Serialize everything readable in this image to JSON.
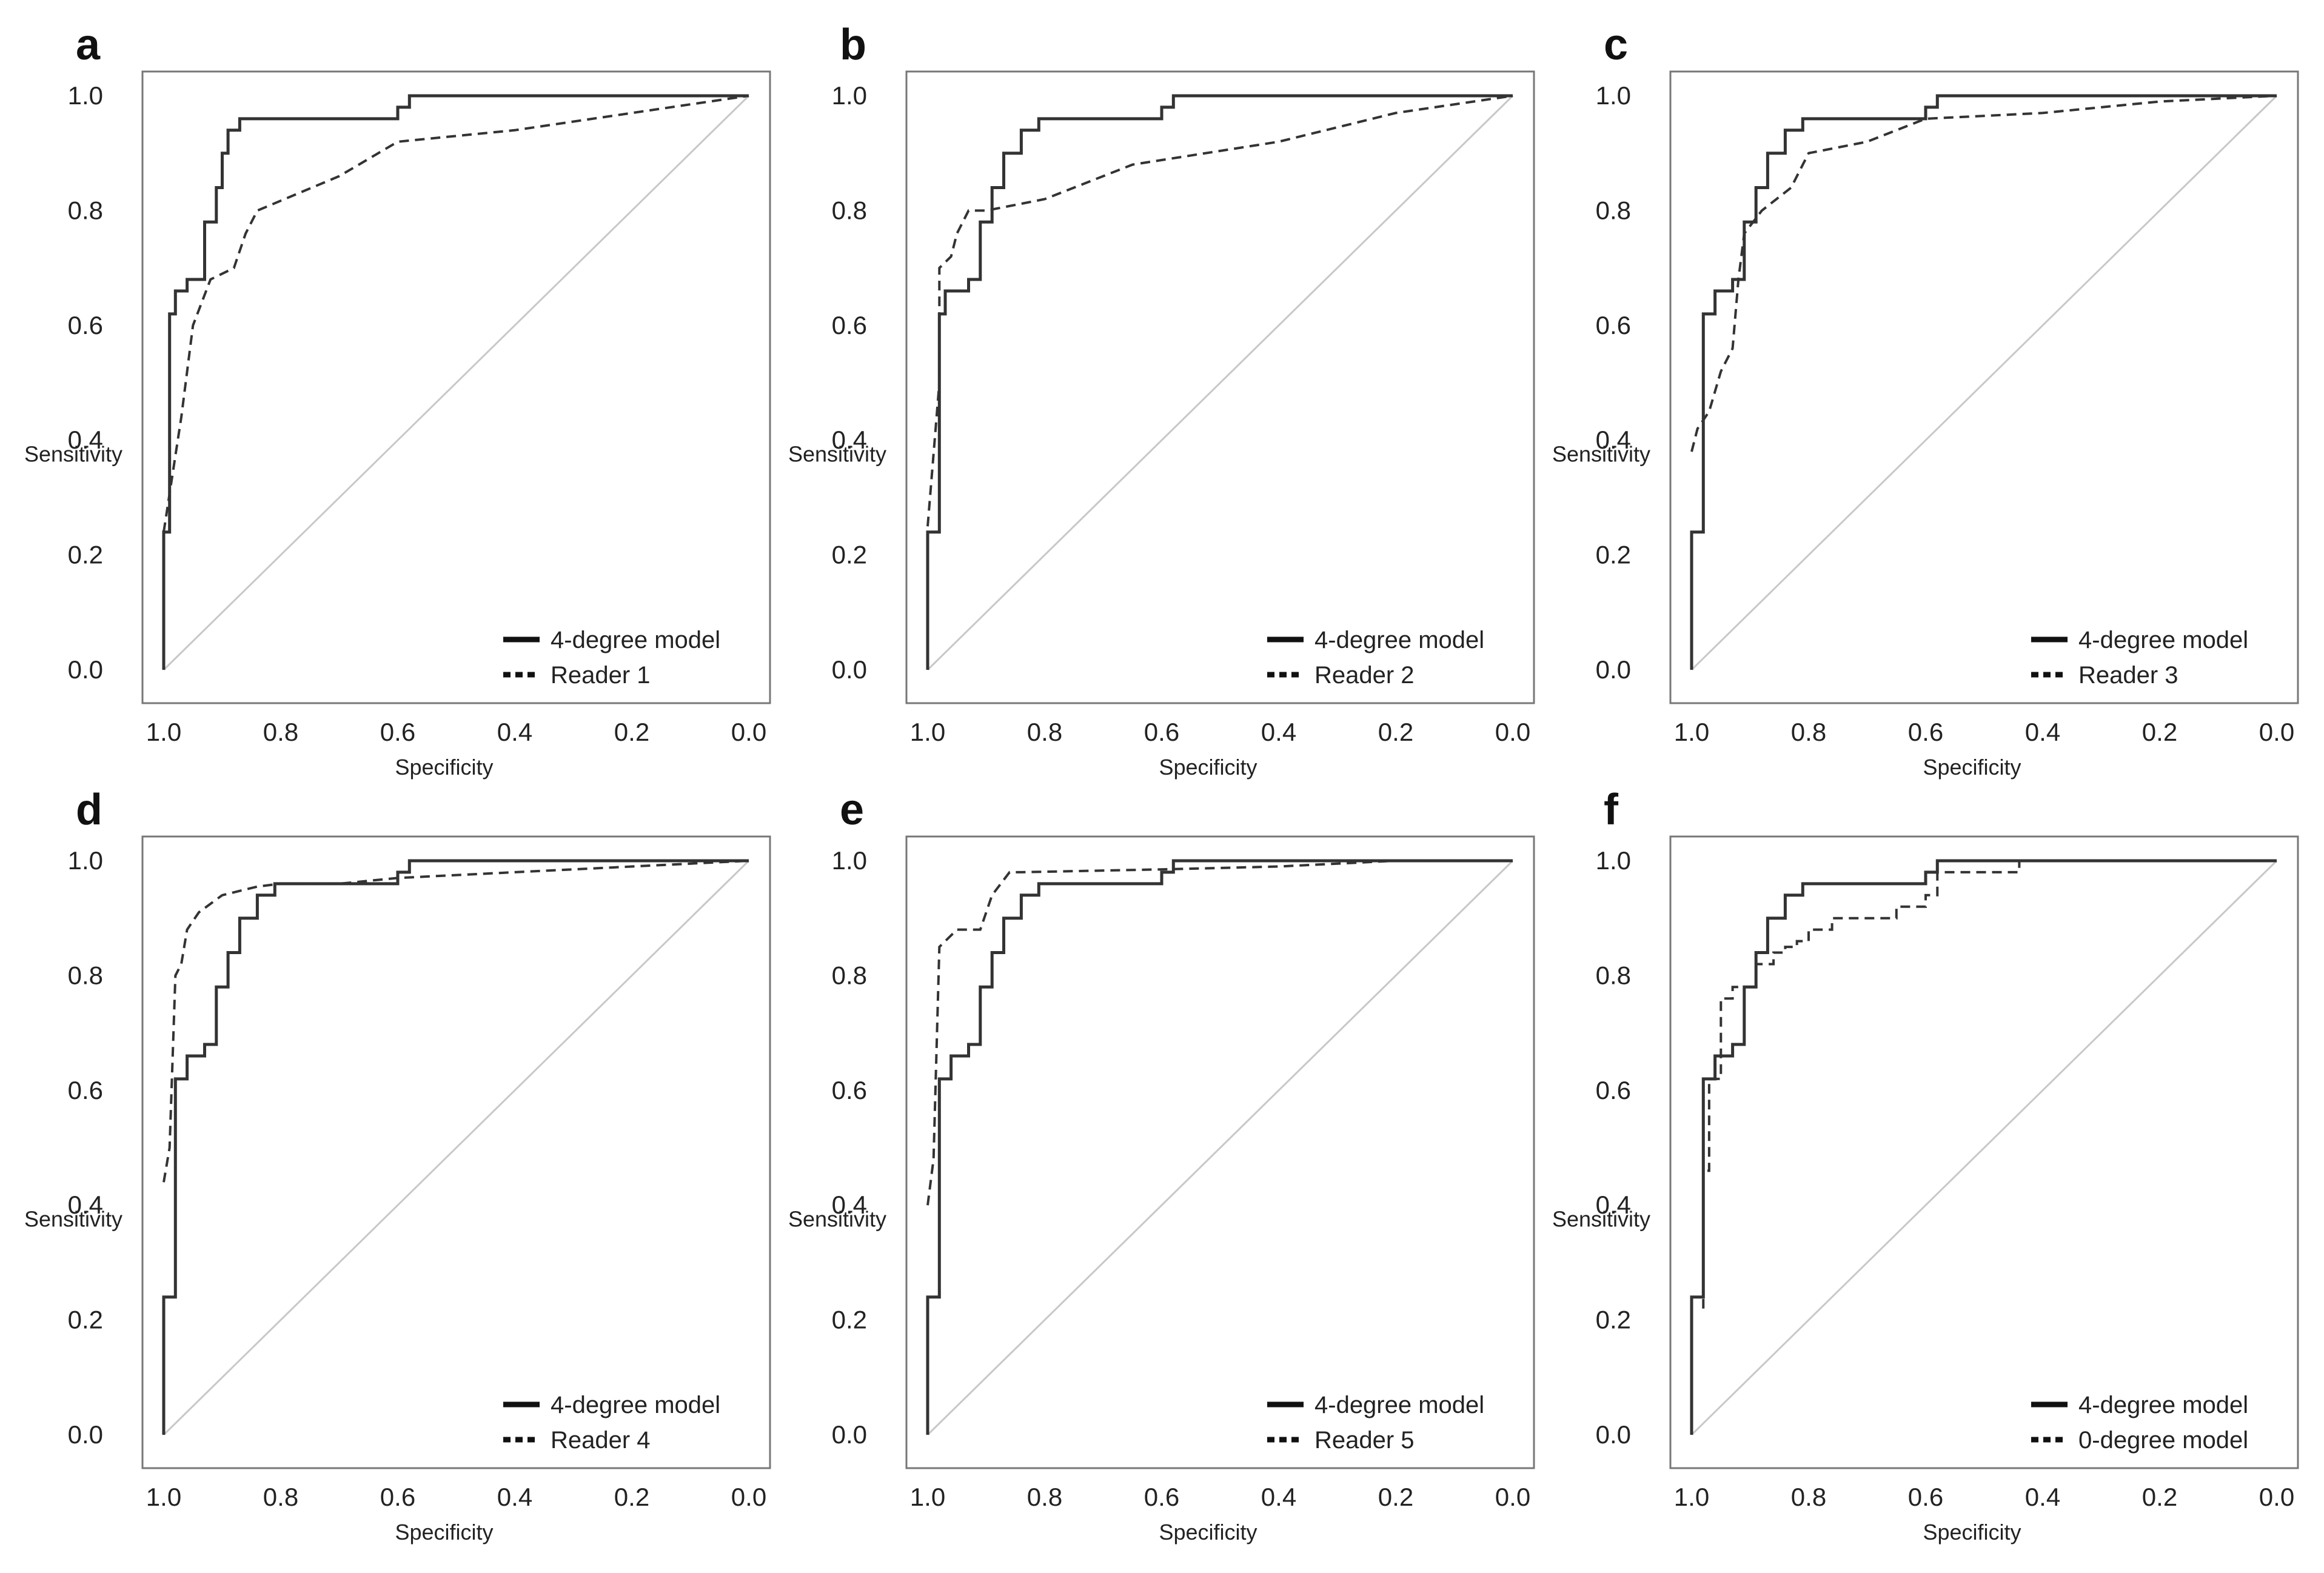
{
  "chart_data": [
    {
      "panel": "a",
      "type": "line",
      "xlabel": "Specificity",
      "ylabel": "Sensitivity",
      "xlim": [
        1.0,
        0.0
      ],
      "ylim": [
        0.0,
        1.0
      ],
      "x_ticks": [
        "1.0",
        "0.8",
        "0.6",
        "0.4",
        "0.2",
        "0.0"
      ],
      "y_ticks": [
        "0.0",
        "0.2",
        "0.4",
        "0.6",
        "0.8",
        "1.0"
      ],
      "legend_position": "bottom-right",
      "reference_line": true,
      "series": [
        {
          "name": "4-degree model",
          "style": "solid",
          "x": [
            1.0,
            1.0,
            0.99,
            0.99,
            0.98,
            0.98,
            0.96,
            0.96,
            0.93,
            0.93,
            0.91,
            0.91,
            0.9,
            0.9,
            0.89,
            0.89,
            0.87,
            0.87,
            0.84,
            0.84,
            0.81,
            0.81,
            0.6,
            0.6,
            0.58,
            0.58,
            0.0
          ],
          "y": [
            0.0,
            0.24,
            0.24,
            0.62,
            0.62,
            0.66,
            0.66,
            0.68,
            0.68,
            0.78,
            0.78,
            0.84,
            0.84,
            0.9,
            0.9,
            0.94,
            0.94,
            0.96,
            0.96,
            0.96,
            0.96,
            0.96,
            0.96,
            0.98,
            0.98,
            1.0,
            1.0
          ]
        },
        {
          "name": "Reader 1",
          "style": "dashed",
          "x": [
            1.0,
            0.97,
            0.95,
            0.92,
            0.88,
            0.86,
            0.84,
            0.7,
            0.6,
            0.4,
            0.2,
            0.0
          ],
          "y": [
            0.24,
            0.44,
            0.6,
            0.68,
            0.7,
            0.76,
            0.8,
            0.86,
            0.92,
            0.94,
            0.97,
            1.0
          ]
        }
      ]
    },
    {
      "panel": "b",
      "type": "line",
      "xlabel": "Specificity",
      "ylabel": "Sensitivity",
      "xlim": [
        1.0,
        0.0
      ],
      "ylim": [
        0.0,
        1.0
      ],
      "x_ticks": [
        "1.0",
        "0.8",
        "0.6",
        "0.4",
        "0.2",
        "0.0"
      ],
      "y_ticks": [
        "0.0",
        "0.2",
        "0.4",
        "0.6",
        "0.8",
        "1.0"
      ],
      "legend_position": "bottom-right",
      "reference_line": true,
      "series": [
        {
          "name": "4-degree model",
          "style": "solid",
          "x": [
            1.0,
            1.0,
            0.98,
            0.98,
            0.97,
            0.97,
            0.93,
            0.93,
            0.91,
            0.91,
            0.89,
            0.89,
            0.87,
            0.87,
            0.84,
            0.84,
            0.81,
            0.81,
            0.6,
            0.6,
            0.58,
            0.58,
            0.0
          ],
          "y": [
            0.0,
            0.24,
            0.24,
            0.62,
            0.62,
            0.66,
            0.66,
            0.68,
            0.68,
            0.78,
            0.78,
            0.84,
            0.84,
            0.9,
            0.9,
            0.94,
            0.94,
            0.96,
            0.96,
            0.98,
            0.98,
            1.0,
            1.0
          ]
        },
        {
          "name": "Reader 2",
          "style": "dashed",
          "x": [
            1.0,
            0.98,
            0.98,
            0.96,
            0.95,
            0.93,
            0.9,
            0.8,
            0.65,
            0.4,
            0.2,
            0.0
          ],
          "y": [
            0.25,
            0.5,
            0.7,
            0.72,
            0.76,
            0.8,
            0.8,
            0.82,
            0.88,
            0.92,
            0.97,
            1.0
          ]
        }
      ]
    },
    {
      "panel": "c",
      "type": "line",
      "xlabel": "Specificity",
      "ylabel": "Sensitivity",
      "xlim": [
        1.0,
        0.0
      ],
      "ylim": [
        0.0,
        1.0
      ],
      "x_ticks": [
        "1.0",
        "0.8",
        "0.6",
        "0.4",
        "0.2",
        "0.0"
      ],
      "y_ticks": [
        "0.0",
        "0.2",
        "0.4",
        "0.6",
        "0.8",
        "1.0"
      ],
      "legend_position": "bottom-right",
      "reference_line": true,
      "series": [
        {
          "name": "4-degree model",
          "style": "solid",
          "x": [
            1.0,
            1.0,
            0.98,
            0.98,
            0.96,
            0.96,
            0.93,
            0.93,
            0.91,
            0.91,
            0.89,
            0.89,
            0.87,
            0.87,
            0.84,
            0.84,
            0.81,
            0.81,
            0.6,
            0.6,
            0.58,
            0.58,
            0.0
          ],
          "y": [
            0.0,
            0.24,
            0.24,
            0.62,
            0.62,
            0.66,
            0.66,
            0.68,
            0.68,
            0.78,
            0.78,
            0.84,
            0.84,
            0.9,
            0.9,
            0.94,
            0.94,
            0.96,
            0.96,
            0.98,
            0.98,
            1.0,
            1.0
          ]
        },
        {
          "name": "Reader 3",
          "style": "dashed",
          "x": [
            1.0,
            0.99,
            0.97,
            0.95,
            0.93,
            0.92,
            0.91,
            0.88,
            0.83,
            0.8,
            0.7,
            0.6,
            0.4,
            0.2,
            0.0
          ],
          "y": [
            0.38,
            0.42,
            0.45,
            0.52,
            0.56,
            0.68,
            0.76,
            0.8,
            0.84,
            0.9,
            0.92,
            0.96,
            0.97,
            0.99,
            1.0
          ]
        }
      ]
    },
    {
      "panel": "d",
      "type": "line",
      "xlabel": "Specificity",
      "ylabel": "Sensitivity",
      "xlim": [
        1.0,
        0.0
      ],
      "ylim": [
        0.0,
        1.0
      ],
      "x_ticks": [
        "1.0",
        "0.8",
        "0.6",
        "0.4",
        "0.2",
        "0.0"
      ],
      "y_ticks": [
        "0.0",
        "0.2",
        "0.4",
        "0.6",
        "0.8",
        "1.0"
      ],
      "legend_position": "bottom-right",
      "reference_line": true,
      "series": [
        {
          "name": "4-degree model",
          "style": "solid",
          "x": [
            1.0,
            1.0,
            0.98,
            0.98,
            0.96,
            0.96,
            0.93,
            0.93,
            0.91,
            0.91,
            0.89,
            0.89,
            0.87,
            0.87,
            0.84,
            0.84,
            0.81,
            0.81,
            0.6,
            0.6,
            0.58,
            0.58,
            0.0
          ],
          "y": [
            0.0,
            0.24,
            0.24,
            0.62,
            0.62,
            0.66,
            0.66,
            0.68,
            0.68,
            0.78,
            0.78,
            0.84,
            0.84,
            0.9,
            0.9,
            0.94,
            0.94,
            0.96,
            0.96,
            0.98,
            0.98,
            1.0,
            1.0
          ]
        },
        {
          "name": "Reader 4",
          "style": "dashed",
          "x": [
            1.0,
            0.99,
            0.98,
            0.97,
            0.96,
            0.94,
            0.9,
            0.84,
            0.8,
            0.7,
            0.6,
            0.4,
            0.2,
            0.0
          ],
          "y": [
            0.44,
            0.5,
            0.8,
            0.82,
            0.88,
            0.91,
            0.94,
            0.955,
            0.96,
            0.96,
            0.97,
            0.98,
            0.99,
            1.0
          ]
        }
      ]
    },
    {
      "panel": "e",
      "type": "line",
      "xlabel": "Specificity",
      "ylabel": "Sensitivity",
      "xlim": [
        1.0,
        0.0
      ],
      "ylim": [
        0.0,
        1.0
      ],
      "x_ticks": [
        "1.0",
        "0.8",
        "0.6",
        "0.4",
        "0.2",
        "0.0"
      ],
      "y_ticks": [
        "0.0",
        "0.2",
        "0.4",
        "0.6",
        "0.8",
        "1.0"
      ],
      "legend_position": "bottom-right",
      "reference_line": true,
      "series": [
        {
          "name": "4-degree model",
          "style": "solid",
          "x": [
            1.0,
            1.0,
            0.98,
            0.98,
            0.96,
            0.96,
            0.93,
            0.93,
            0.91,
            0.91,
            0.89,
            0.89,
            0.87,
            0.87,
            0.84,
            0.84,
            0.81,
            0.81,
            0.6,
            0.6,
            0.58,
            0.58,
            0.0
          ],
          "y": [
            0.0,
            0.24,
            0.24,
            0.62,
            0.62,
            0.66,
            0.66,
            0.68,
            0.68,
            0.78,
            0.78,
            0.84,
            0.84,
            0.9,
            0.9,
            0.94,
            0.94,
            0.96,
            0.96,
            0.98,
            0.98,
            1.0,
            1.0
          ]
        },
        {
          "name": "Reader 5",
          "style": "dashed",
          "x": [
            1.0,
            0.99,
            0.98,
            0.97,
            0.95,
            0.94,
            0.91,
            0.89,
            0.86,
            0.84,
            0.6,
            0.4,
            0.2,
            0.0
          ],
          "y": [
            0.4,
            0.48,
            0.85,
            0.86,
            0.88,
            0.88,
            0.88,
            0.94,
            0.98,
            0.98,
            0.985,
            0.99,
            1.0,
            1.0
          ]
        }
      ]
    },
    {
      "panel": "f",
      "type": "line",
      "xlabel": "Specificity",
      "ylabel": "Sensitivity",
      "xlim": [
        1.0,
        0.0
      ],
      "ylim": [
        0.0,
        1.0
      ],
      "x_ticks": [
        "1.0",
        "0.8",
        "0.6",
        "0.4",
        "0.2",
        "0.0"
      ],
      "y_ticks": [
        "0.0",
        "0.2",
        "0.4",
        "0.6",
        "0.8",
        "1.0"
      ],
      "legend_position": "bottom-right",
      "reference_line": true,
      "series": [
        {
          "name": "4-degree model",
          "style": "solid",
          "x": [
            1.0,
            1.0,
            0.98,
            0.98,
            0.96,
            0.96,
            0.93,
            0.93,
            0.91,
            0.91,
            0.89,
            0.89,
            0.87,
            0.87,
            0.84,
            0.84,
            0.81,
            0.81,
            0.6,
            0.6,
            0.58,
            0.58,
            0.0
          ],
          "y": [
            0.0,
            0.24,
            0.24,
            0.62,
            0.62,
            0.66,
            0.66,
            0.68,
            0.68,
            0.78,
            0.78,
            0.84,
            0.84,
            0.9,
            0.9,
            0.94,
            0.94,
            0.96,
            0.96,
            0.98,
            0.98,
            1.0,
            1.0
          ]
        },
        {
          "name": "0-degree model",
          "style": "dashed",
          "x": [
            0.98,
            0.98,
            0.97,
            0.97,
            0.95,
            0.95,
            0.93,
            0.93,
            0.89,
            0.89,
            0.86,
            0.86,
            0.84,
            0.84,
            0.82,
            0.82,
            0.8,
            0.8,
            0.76,
            0.76,
            0.65,
            0.65,
            0.6,
            0.6,
            0.58,
            0.58,
            0.44,
            0.44,
            0.0
          ],
          "y": [
            0.22,
            0.46,
            0.46,
            0.62,
            0.62,
            0.76,
            0.76,
            0.78,
            0.78,
            0.82,
            0.82,
            0.84,
            0.84,
            0.85,
            0.85,
            0.86,
            0.86,
            0.88,
            0.88,
            0.9,
            0.9,
            0.92,
            0.92,
            0.94,
            0.94,
            0.98,
            0.98,
            1.0,
            1.0
          ]
        }
      ]
    }
  ]
}
